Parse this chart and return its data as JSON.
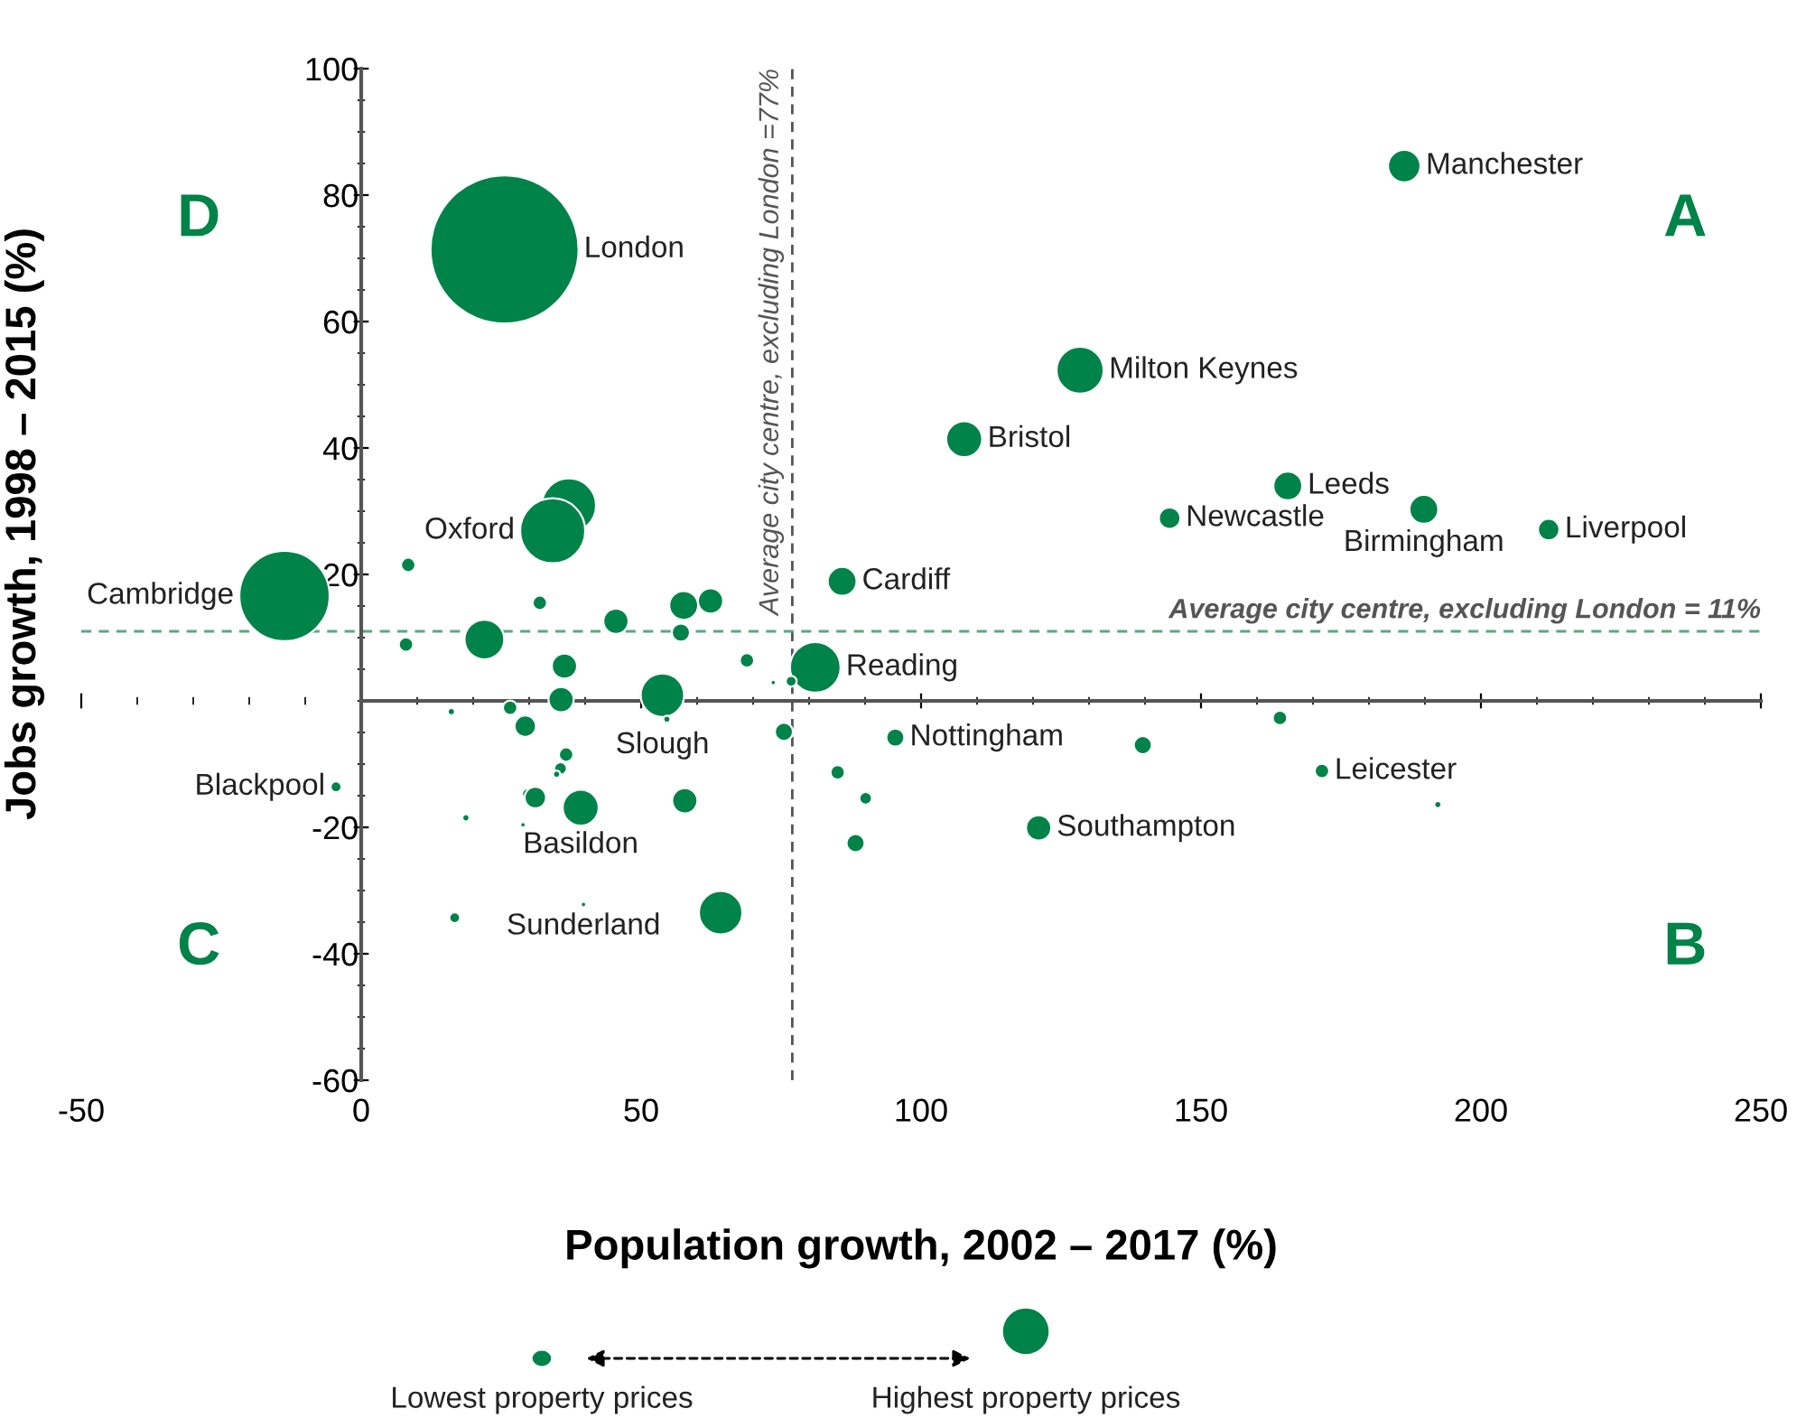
{
  "chart_data": {
    "type": "bubble",
    "xlabel": "Population growth, 2002 – 2017 (%)",
    "ylabel": "Jobs growth, 1998 – 2015 (%)",
    "xlim": [
      -50,
      250
    ],
    "ylim": [
      -60,
      100
    ],
    "xticks": [
      -50,
      0,
      50,
      100,
      150,
      200,
      250
    ],
    "yticks": [
      -60,
      -40,
      -20,
      20,
      40,
      60,
      80,
      100
    ],
    "grid": false,
    "series": [
      {
        "color": "#008348",
        "x": [
          25.6,
          186.3,
          128.4,
          107.7,
          165.5,
          189.8,
          212.1,
          144.4,
          85.9,
          81.1,
          37.1,
          34.2,
          -13.7,
          95.4,
          171.6,
          121.0,
          164.1,
          139.6,
          192.3,
          85.1,
          90.1,
          88.3,
          75.5,
          68.9,
          73.6,
          76.8,
          8.4,
          31.9,
          45.5,
          57.6,
          62.4,
          57.1,
          8.0,
          22.0,
          36.3,
          35.7,
          53.8,
          54.6,
          16.1,
          26.6,
          29.3,
          36.6,
          35.6,
          34.9,
          29.7,
          31.1,
          39.2,
          57.8,
          -4.5,
          18.7,
          28.9,
          16.7,
          39.7,
          64.2
        ],
        "values": [
          71.4,
          84.6,
          52.3,
          41.4,
          34.0,
          30.3,
          27.1,
          28.9,
          18.9,
          5.3,
          30.9,
          26.9,
          16.6,
          -5.8,
          -11.1,
          -20.1,
          -2.7,
          -7.0,
          -16.4,
          -11.3,
          -15.4,
          -22.5,
          -4.9,
          6.4,
          2.9,
          3.1,
          21.5,
          15.5,
          12.6,
          15.1,
          15.8,
          10.8,
          8.9,
          9.7,
          5.5,
          0.2,
          0.9,
          -2.9,
          -1.7,
          -1.1,
          -4.0,
          -8.5,
          -10.7,
          -11.6,
          -14.7,
          -15.3,
          -16.9,
          -15.8,
          -13.6,
          -18.5,
          -19.6,
          -34.3,
          -32.2,
          -33.5
        ],
        "sizes": [
          1,
          0.048,
          0.101,
          0.059,
          0.038,
          0.038,
          0.021,
          0.021,
          0.038,
          0.117,
          0.134,
          0.193,
          0.372,
          0.015,
          0.0095,
          0.029,
          0.0095,
          0.015,
          0.0024,
          0.0095,
          0.0073,
          0.015,
          0.015,
          0.0095,
          0.0013,
          0.0054,
          0.0095,
          0.0095,
          0.029,
          0.038,
          0.029,
          0.015,
          0.0095,
          0.072,
          0.029,
          0.029,
          0.086,
          0.0024,
          0.0024,
          0.0095,
          0.021,
          0.0095,
          0.0073,
          0.0024,
          0.0054,
          0.021,
          0.059,
          0.029,
          0.0054,
          0.0024,
          0.0013,
          0.0054,
          0.0013,
          0.086
        ]
      }
    ],
    "ref_lines": [
      {
        "axis": "x",
        "value": 77,
        "label": "Average city centre, excluding London =77%",
        "color": "#555555",
        "line_style": "dashed"
      },
      {
        "axis": "y",
        "value": 11,
        "label": "Average city centre, excluding London = 11%",
        "color": "#5aaa80",
        "line_style": "dashed"
      }
    ],
    "annotations": [
      {
        "text": "London",
        "x": 25.6,
        "y": 71.4
      },
      {
        "text": "Manchester",
        "x": 186.3,
        "y": 84.6
      },
      {
        "text": "Milton Keynes",
        "x": 128.4,
        "y": 52.3
      },
      {
        "text": "Bristol",
        "x": 107.7,
        "y": 41.4
      },
      {
        "text": "Leeds",
        "x": 165.5,
        "y": 34.0
      },
      {
        "text": "Birmingham",
        "x": 189.8,
        "y": 30.3
      },
      {
        "text": "Liverpool",
        "x": 212.1,
        "y": 27.1
      },
      {
        "text": "Newcastle",
        "x": 144.4,
        "y": 28.9
      },
      {
        "text": "Cardiff",
        "x": 85.9,
        "y": 18.9
      },
      {
        "text": "Reading",
        "x": 81.1,
        "y": 5.3
      },
      {
        "text": "Oxford",
        "x": 34.2,
        "y": 26.9
      },
      {
        "text": "Cambridge",
        "x": -13.7,
        "y": 16.6
      },
      {
        "text": "Slough",
        "x": 53.8,
        "y": 0.9
      },
      {
        "text": "Nottingham",
        "x": 95.4,
        "y": -5.8
      },
      {
        "text": "Leicester",
        "x": 171.6,
        "y": -11.1
      },
      {
        "text": "Southampton",
        "x": 121.0,
        "y": -20.1
      },
      {
        "text": "Blackpool",
        "x": -4.5,
        "y": -13.6
      },
      {
        "text": "Basildon",
        "x": 39.2,
        "y": -16.9
      },
      {
        "text": "Sunderland",
        "x": 39.7,
        "y": -32.2
      },
      "D",
      "A",
      "C",
      "B",
      "Lowest property prices",
      "Highest property prices"
    ]
  }
}
